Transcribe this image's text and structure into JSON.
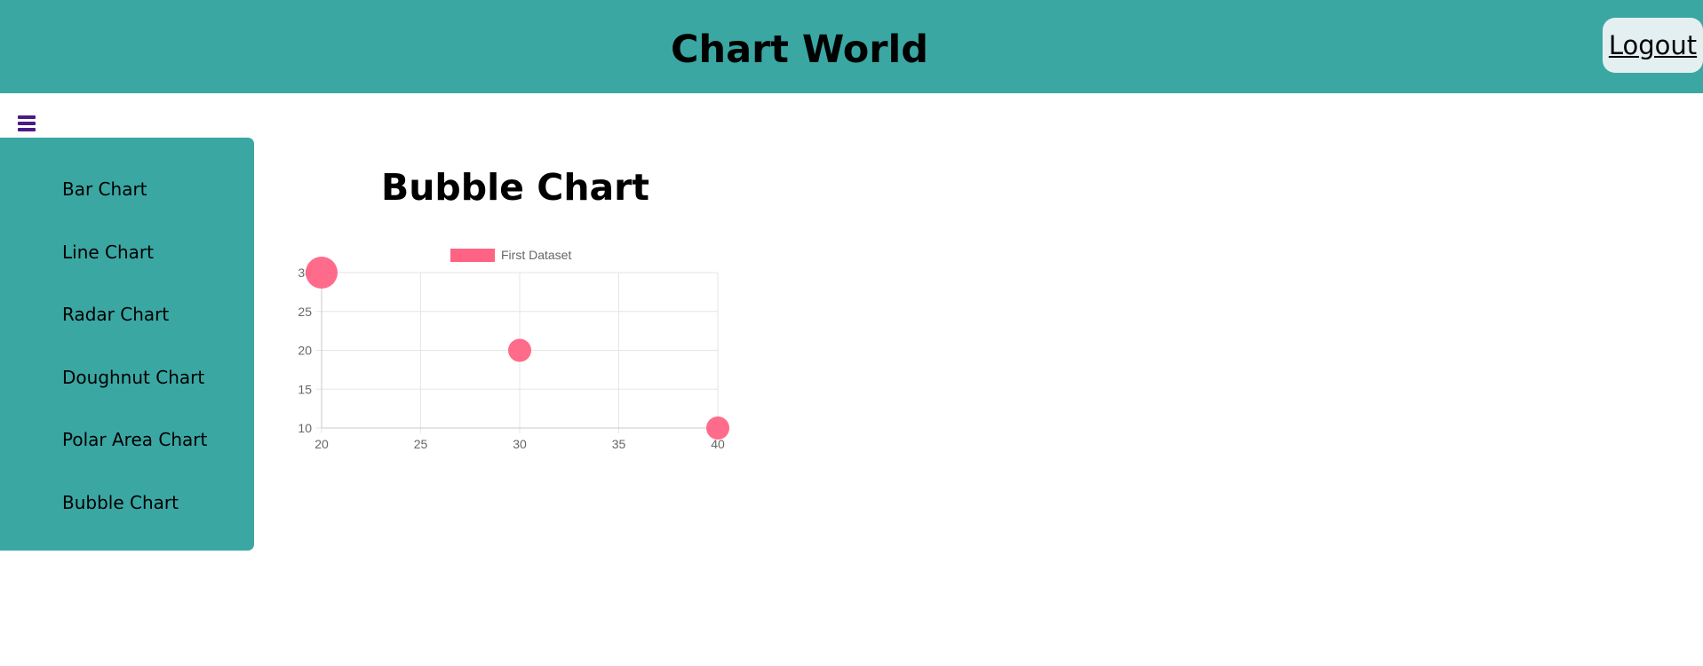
{
  "header": {
    "title": "Chart World",
    "logout_label": "Logout"
  },
  "menu": {
    "toggle_icon": "hamburger-icon"
  },
  "sidebar": {
    "items": [
      {
        "label": "Bar Chart"
      },
      {
        "label": "Line Chart"
      },
      {
        "label": "Radar Chart"
      },
      {
        "label": "Doughnut Chart"
      },
      {
        "label": "Polar Area Chart"
      },
      {
        "label": "Bubble Chart"
      }
    ]
  },
  "main": {
    "title": "Bubble Chart"
  },
  "colors": {
    "header_bg": "#3aa7a3",
    "sidebar_bg": "#3aa7a3",
    "logout_bg": "#e4eff1",
    "menu_icon": "#4a1a86",
    "bubble": "#ff6384",
    "grid": "#e6e6e6",
    "tick_text": "#666666"
  },
  "chart_data": {
    "type": "scatter",
    "subtype": "bubble",
    "title": "",
    "xlabel": "",
    "ylabel": "",
    "xlim": [
      20,
      40
    ],
    "ylim": [
      10,
      30
    ],
    "x_ticks": [
      20,
      25,
      30,
      35,
      40
    ],
    "y_ticks": [
      10,
      15,
      20,
      25,
      30
    ],
    "grid": true,
    "legend": "top-center",
    "series": [
      {
        "name": "First Dataset",
        "color": "#ff6384",
        "points": [
          {
            "x": 20,
            "y": 30,
            "r": 15
          },
          {
            "x": 30,
            "y": 20,
            "r": 10
          },
          {
            "x": 40,
            "y": 10,
            "r": 10
          }
        ]
      }
    ]
  }
}
